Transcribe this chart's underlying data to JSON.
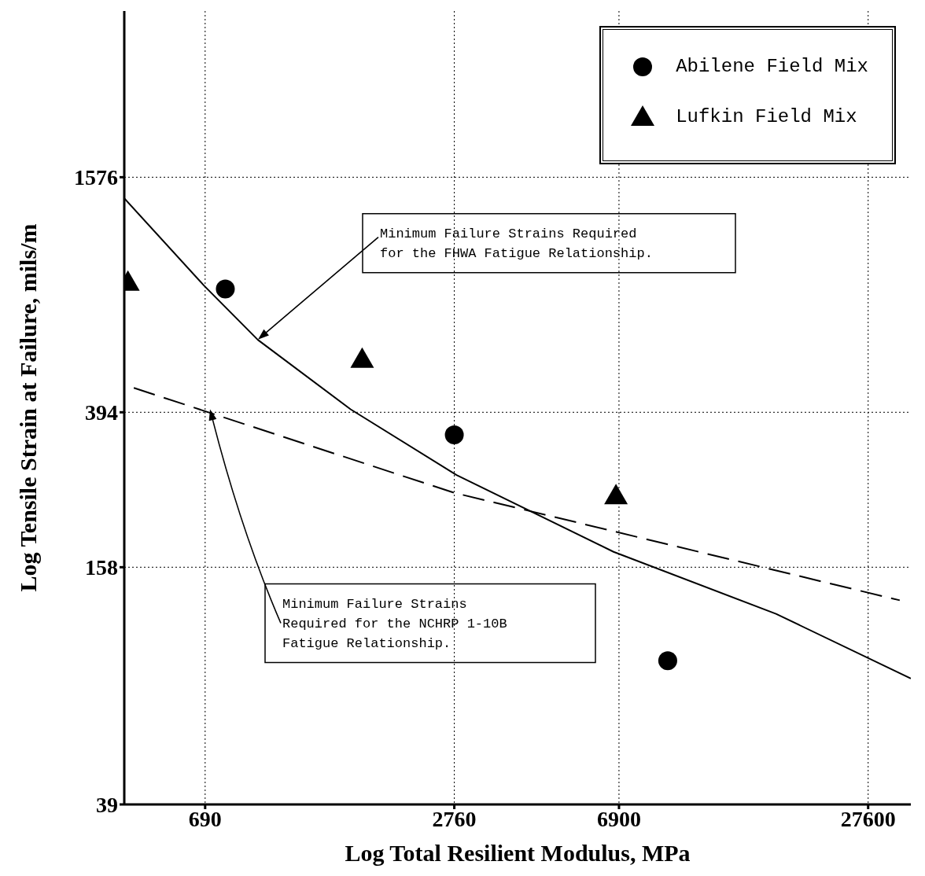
{
  "chart_data": {
    "type": "scatter",
    "xlabel": "Log Total Resilient Modulus, MPa",
    "ylabel": "Log Tensile Strain at Failure, mils/m",
    "log": "xy",
    "xlim": [
      440,
      35000
    ],
    "xticks": [
      690,
      2760,
      6900,
      27600
    ],
    "ylim": [
      39,
      4200
    ],
    "yticks": [
      39,
      158,
      394,
      1576
    ],
    "grid": true,
    "legend": "top right",
    "series": [
      {
        "name": "Abilene Field Mix",
        "marker": "circle",
        "color": "#000000",
        "x": [
          772,
          2760,
          9050
        ],
        "values": [
          815,
          345,
          91
        ]
      },
      {
        "name": "Lufkin Field Mix",
        "marker": "triangle",
        "color": "#000000",
        "x": [
          449,
          1653,
          6785
        ],
        "values": [
          849,
          539,
          241
        ]
      },
      {
        "type": "line",
        "marker": "none",
        "line_style": "solid",
        "color": "#000000",
        "x": [
          441,
          687,
          925,
          1550,
          2795,
          6695,
          16530,
          35000
        ],
        "values": [
          1388,
          830,
          604,
          401,
          272,
          173,
          120,
          82
        ]
      },
      {
        "type": "line",
        "marker": "none",
        "line_style": "dashed",
        "color": "#000000",
        "x": [
          464,
          2760,
          32900
        ],
        "values": [
          455,
          245,
          130
        ]
      }
    ],
    "annotations": [
      "Minimum Failure Strains Required for the FHWA Fatigue Relationship.",
      "Minimum Failure Strains Required for the NCHRP 1-10B Fatigue Relationship."
    ]
  }
}
